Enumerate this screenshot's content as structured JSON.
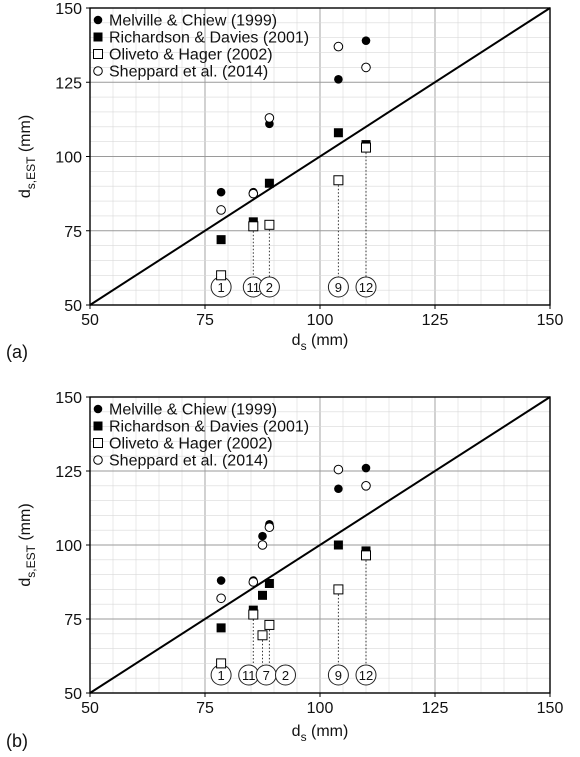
{
  "chart_data": [
    {
      "type": "scatter",
      "panel_label": "(a)",
      "xlabel_main": "d",
      "xlabel_sub": "s",
      "xlabel_unit": " (mm)",
      "ylabel_main": "d",
      "ylabel_sub": "s,EST",
      "ylabel_unit": " (mm)",
      "xlim": [
        50,
        150
      ],
      "ylim": [
        50,
        150
      ],
      "xticks": [
        50,
        75,
        100,
        125,
        150
      ],
      "yticks": [
        50,
        75,
        100,
        125,
        150
      ],
      "grid": true,
      "legend_position": "top-left",
      "reference_line": "y = x",
      "series": [
        {
          "name": "Melville & Chiew (1999)",
          "marker": "filled-circle",
          "x": [
            78.5,
            85.5,
            89,
            104,
            110
          ],
          "y": [
            88,
            88,
            111,
            126,
            139
          ]
        },
        {
          "name": "Richardson & Davies (2001)",
          "marker": "filled-square",
          "x": [
            78.5,
            85.5,
            89,
            104,
            110
          ],
          "y": [
            72,
            78,
            91,
            108,
            104
          ]
        },
        {
          "name": "Oliveto & Hager (2002)",
          "marker": "open-square",
          "x": [
            78.5,
            85.5,
            89,
            104,
            110
          ],
          "y": [
            60,
            76.5,
            77,
            92,
            103
          ]
        },
        {
          "name": "Sheppard et al. (2014)",
          "marker": "open-circle",
          "x": [
            78.5,
            85.5,
            89,
            104,
            110
          ],
          "y": [
            82,
            87.5,
            113,
            137,
            130
          ]
        }
      ],
      "id_labels": [
        {
          "text": "1",
          "x": 78.5,
          "y_top": null
        },
        {
          "text": "11",
          "x": 85.5,
          "y_top": 76.5
        },
        {
          "text": "2",
          "x": 89,
          "y_top": 77
        },
        {
          "text": "9",
          "x": 104,
          "y_top": 92
        },
        {
          "text": "12",
          "x": 110,
          "y_top": 103
        }
      ]
    },
    {
      "type": "scatter",
      "panel_label": "(b)",
      "xlabel_main": "d",
      "xlabel_sub": "s",
      "xlabel_unit": " (mm)",
      "ylabel_main": "d",
      "ylabel_sub": "s,EST",
      "ylabel_unit": " (mm)",
      "xlim": [
        50,
        150
      ],
      "ylim": [
        50,
        150
      ],
      "xticks": [
        50,
        75,
        100,
        125,
        150
      ],
      "yticks": [
        50,
        75,
        100,
        125,
        150
      ],
      "grid": true,
      "legend_position": "top-left",
      "reference_line": "y = x",
      "series": [
        {
          "name": "Melville & Chiew (1999)",
          "marker": "filled-circle",
          "x": [
            78.5,
            85.5,
            87.5,
            89,
            104,
            110
          ],
          "y": [
            88,
            88,
            103,
            107,
            119,
            126
          ]
        },
        {
          "name": "Richardson & Davies (2001)",
          "marker": "filled-square",
          "x": [
            78.5,
            85.5,
            87.5,
            89,
            104,
            110
          ],
          "y": [
            72,
            78,
            83,
            87,
            100,
            98
          ]
        },
        {
          "name": "Oliveto & Hager (2002)",
          "marker": "open-square",
          "x": [
            78.5,
            85.5,
            87.5,
            89,
            104,
            110
          ],
          "y": [
            60,
            76.5,
            69.5,
            73,
            85,
            96.5
          ]
        },
        {
          "name": "Sheppard et al. (2014)",
          "marker": "open-circle",
          "x": [
            78.5,
            85.5,
            87.5,
            89,
            104,
            110
          ],
          "y": [
            82,
            87.5,
            100,
            106,
            125.5,
            120
          ]
        }
      ],
      "id_labels": [
        {
          "text": "1",
          "x": 78.5,
          "label_x": 78.5,
          "y_top": null
        },
        {
          "text": "11",
          "x": 85.5,
          "label_x": 84.5,
          "y_top": 76.5
        },
        {
          "text": "7",
          "x": 87.5,
          "label_x": 88.3,
          "y_top": 69.5
        },
        {
          "text": "2",
          "x": 89,
          "label_x": 92.5,
          "y_top": 73
        },
        {
          "text": "9",
          "x": 104,
          "label_x": 104,
          "y_top": 85
        },
        {
          "text": "12",
          "x": 110,
          "label_x": 110,
          "y_top": 96.5
        }
      ]
    }
  ]
}
